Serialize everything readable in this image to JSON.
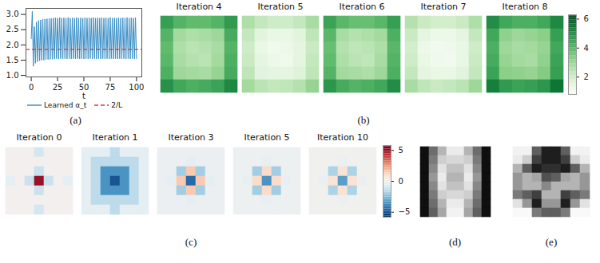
{
  "chart_data": [
    {
      "type": "line",
      "panel_label": "(a)",
      "xlabel": "t",
      "xlim": [
        -5,
        105
      ],
      "xticks": [
        0,
        25,
        50,
        75,
        100
      ],
      "ylim": [
        0.95,
        3.2
      ],
      "yticks": [
        {
          "value": 1,
          "label": "1.0"
        },
        1.5,
        {
          "value": 2,
          "label": "2.0"
        },
        2.5,
        {
          "value": 3,
          "label": "3.0"
        }
      ],
      "legend": "bottom",
      "x": [
        0,
        1,
        2,
        3,
        4,
        5,
        6,
        7,
        8,
        9,
        10,
        11,
        12,
        13,
        14,
        15,
        16,
        17,
        18,
        19,
        20,
        21,
        22,
        23,
        24,
        25,
        26,
        27,
        28,
        29,
        30,
        31,
        32,
        33,
        34,
        35,
        36,
        37,
        38,
        39,
        40,
        41,
        42,
        43,
        44,
        45,
        46,
        47,
        48,
        49,
        50,
        51,
        52,
        53,
        54,
        55,
        56,
        57,
        58,
        59,
        60,
        61,
        62,
        63,
        64,
        65,
        66,
        67,
        68,
        69,
        70,
        71,
        72,
        73,
        74,
        75,
        76,
        77,
        78,
        79,
        80,
        81,
        82,
        83,
        84,
        85,
        86,
        87,
        88,
        89,
        90,
        91,
        92,
        93,
        94,
        95,
        96,
        97,
        98,
        99,
        100
      ],
      "series": [
        {
          "name": "Learned α_t",
          "color": "#3a8fc7",
          "line_style": "solid",
          "values": [
            2.2,
            3.1,
            1.3,
            2.6,
            1.4,
            2.75,
            1.45,
            2.8,
            1.48,
            2.82,
            1.5,
            2.84,
            1.5,
            2.85,
            1.52,
            2.86,
            1.52,
            2.87,
            1.53,
            2.87,
            1.53,
            2.88,
            1.54,
            2.89,
            1.55,
            2.88,
            1.54,
            2.9,
            1.55,
            2.88,
            1.54,
            2.89,
            1.55,
            2.88,
            1.54,
            2.9,
            1.55,
            2.88,
            1.54,
            2.89,
            1.55,
            2.88,
            1.54,
            2.9,
            1.55,
            2.88,
            1.54,
            2.89,
            1.55,
            2.88,
            1.54,
            2.9,
            1.55,
            2.88,
            1.54,
            2.89,
            1.55,
            2.88,
            1.54,
            2.9,
            1.55,
            2.88,
            1.54,
            2.89,
            1.55,
            2.88,
            1.54,
            2.9,
            1.55,
            2.88,
            1.54,
            2.89,
            1.55,
            2.88,
            1.54,
            2.9,
            1.55,
            2.88,
            1.54,
            2.89,
            1.55,
            2.88,
            1.54,
            2.9,
            1.55,
            2.88,
            1.54,
            2.89,
            1.55,
            2.88,
            1.54,
            2.9,
            1.55,
            2.88,
            1.54,
            2.89,
            1.55,
            2.88,
            1.54,
            2.9,
            1.55
          ]
        }
      ],
      "reference_lines": [
        {
          "name": "2/L",
          "value": 1.85,
          "color": "#e8352e",
          "line_style": "dashed"
        }
      ]
    },
    {
      "type": "heatmap",
      "panel_label": "(b)",
      "color": "greens",
      "colorbar": {
        "range": [
          0.8,
          6.3
        ],
        "ticks": [
          2,
          4,
          6
        ]
      },
      "panels": [
        {
          "title": "Iteration 4",
          "cells": [
            [
              4.5,
              4.0,
              3.8,
              3.8,
              4.0,
              4.6
            ],
            [
              4.0,
              2.8,
              2.6,
              2.7,
              2.9,
              4.2
            ],
            [
              3.8,
              2.6,
              2.4,
              2.5,
              2.7,
              4.0
            ],
            [
              3.9,
              2.7,
              2.5,
              2.4,
              2.8,
              4.1
            ],
            [
              4.1,
              2.9,
              2.8,
              2.7,
              3.0,
              4.2
            ],
            [
              4.8,
              4.3,
              4.1,
              4.2,
              4.4,
              5.0
            ]
          ]
        },
        {
          "title": "Iteration 5",
          "cells": [
            [
              2.6,
              2.2,
              2.0,
              2.0,
              2.2,
              2.7
            ],
            [
              2.2,
              1.5,
              1.3,
              1.3,
              1.5,
              2.3
            ],
            [
              2.0,
              1.3,
              1.1,
              1.2,
              1.4,
              2.1
            ],
            [
              2.1,
              1.4,
              1.2,
              1.1,
              1.4,
              2.2
            ],
            [
              2.3,
              1.5,
              1.4,
              1.4,
              1.6,
              2.3
            ],
            [
              2.8,
              2.4,
              2.2,
              2.3,
              2.5,
              3.0
            ]
          ]
        },
        {
          "title": "Iteration 6",
          "cells": [
            [
              4.4,
              3.9,
              3.7,
              3.7,
              3.9,
              4.5
            ],
            [
              3.9,
              2.7,
              2.5,
              2.6,
              2.8,
              4.1
            ],
            [
              3.7,
              2.5,
              2.3,
              2.4,
              2.6,
              3.9
            ],
            [
              3.8,
              2.6,
              2.4,
              2.3,
              2.7,
              4.0
            ],
            [
              4.0,
              2.8,
              2.7,
              2.6,
              2.9,
              4.1
            ],
            [
              4.7,
              4.2,
              4.0,
              4.1,
              4.3,
              4.9
            ]
          ]
        },
        {
          "title": "Iteration 7",
          "cells": [
            [
              2.5,
              2.1,
              1.9,
              1.9,
              2.1,
              2.6
            ],
            [
              2.1,
              1.4,
              1.2,
              1.2,
              1.4,
              2.2
            ],
            [
              1.9,
              1.2,
              1.0,
              1.1,
              1.3,
              2.0
            ],
            [
              2.0,
              1.3,
              1.1,
              1.0,
              1.3,
              2.1
            ],
            [
              2.2,
              1.4,
              1.3,
              1.3,
              1.5,
              2.2
            ],
            [
              2.7,
              2.3,
              2.1,
              2.2,
              2.4,
              2.9
            ]
          ]
        },
        {
          "title": "Iteration 8",
          "cells": [
            [
              4.9,
              4.3,
              4.1,
              4.1,
              4.3,
              5.0
            ],
            [
              4.3,
              3.1,
              2.9,
              3.0,
              3.2,
              4.5
            ],
            [
              4.1,
              2.9,
              2.7,
              2.8,
              3.0,
              4.3
            ],
            [
              4.2,
              3.0,
              2.8,
              2.7,
              3.1,
              4.4
            ],
            [
              4.4,
              3.2,
              3.1,
              3.0,
              3.3,
              4.5
            ],
            [
              5.2,
              4.6,
              4.4,
              4.5,
              4.7,
              5.4
            ]
          ]
        }
      ]
    },
    {
      "type": "heatmap",
      "panel_label": "(c)",
      "color": "rdbu_r",
      "colorbar": {
        "range": [
          -5.8,
          5.8
        ],
        "ticks": [
          5,
          0,
          {
            "value": -5,
            "label": "−5"
          }
        ]
      },
      "panels": [
        {
          "title": "Iteration 0",
          "cells": [
            [
              0,
              0,
              0,
              -1,
              0,
              0,
              0
            ],
            [
              0,
              0,
              0,
              0,
              0,
              0,
              0
            ],
            [
              0,
              0,
              0,
              -1.2,
              0,
              0,
              0
            ],
            [
              -0.5,
              0,
              -1.2,
              5,
              -1.2,
              0,
              -0.5
            ],
            [
              0,
              0,
              0,
              -1.2,
              0,
              0,
              0
            ],
            [
              0,
              0,
              0,
              0,
              0,
              0,
              0
            ],
            [
              0,
              0,
              0,
              -1,
              0,
              0,
              0
            ]
          ]
        },
        {
          "title": "Iteration 1",
          "cells": [
            [
              -0.5,
              -0.5,
              -0.5,
              -1.5,
              -0.5,
              -0.5,
              -0.5
            ],
            [
              -0.5,
              -1.5,
              -1.5,
              -1.5,
              -1.5,
              -1.5,
              -0.5
            ],
            [
              -0.5,
              -1.5,
              -3.5,
              -3.5,
              -3.5,
              -1.5,
              -0.5
            ],
            [
              -0.5,
              -1.5,
              -3.5,
              -5,
              -3.5,
              -1.5,
              -0.5
            ],
            [
              -0.5,
              -1.5,
              -3.5,
              -3.5,
              -3.5,
              -1.5,
              -0.5
            ],
            [
              -0.5,
              -1.5,
              -1.5,
              -1.5,
              -1.5,
              -1.5,
              -0.5
            ],
            [
              -0.5,
              -0.5,
              -0.5,
              -1.5,
              -0.5,
              -0.5,
              -0.5
            ]
          ]
        },
        {
          "title": "Iteration 3",
          "cells": [
            [
              -0.3,
              -0.3,
              -0.3,
              -0.3,
              -0.3,
              -0.3,
              -0.3
            ],
            [
              -0.3,
              -0.3,
              -0.3,
              -0.5,
              -0.3,
              -0.3,
              -0.3
            ],
            [
              -0.3,
              -0.3,
              -2,
              1.5,
              -2,
              -0.3,
              -0.3
            ],
            [
              -0.3,
              -0.5,
              1.5,
              -4.5,
              1.5,
              -0.5,
              -0.3
            ],
            [
              -0.3,
              -0.3,
              -2,
              1.5,
              -2,
              -0.3,
              -0.3
            ],
            [
              -0.3,
              -0.3,
              -0.3,
              -0.5,
              -0.3,
              -0.3,
              -0.3
            ],
            [
              -0.3,
              -0.3,
              -0.3,
              -0.3,
              -0.3,
              -0.3,
              -0.3
            ]
          ]
        },
        {
          "title": "Iteration 5",
          "cells": [
            [
              -0.2,
              -0.2,
              -0.2,
              -0.2,
              -0.2,
              -0.2,
              -0.2
            ],
            [
              -0.2,
              -0.2,
              -0.2,
              -0.4,
              -0.2,
              -0.2,
              -0.2
            ],
            [
              -0.2,
              -0.2,
              -2,
              1,
              -2,
              -0.2,
              -0.2
            ],
            [
              -0.2,
              -0.4,
              1,
              -3.5,
              1,
              -0.4,
              -0.2
            ],
            [
              -0.2,
              -0.2,
              -2,
              1,
              -2,
              -0.2,
              -0.2
            ],
            [
              -0.2,
              -0.2,
              -0.2,
              -0.4,
              -0.2,
              -0.2,
              -0.2
            ],
            [
              -0.2,
              -0.2,
              -0.2,
              -0.2,
              -0.2,
              -0.2,
              -0.2
            ]
          ]
        },
        {
          "title": "Iteration 10",
          "cells": [
            [
              -0.1,
              -0.1,
              -0.1,
              -0.1,
              -0.1,
              -0.1,
              -0.1
            ],
            [
              -0.1,
              -0.1,
              -0.1,
              -0.3,
              -0.1,
              -0.1,
              -0.1
            ],
            [
              -0.1,
              -0.1,
              -1.8,
              0.8,
              -1.8,
              -0.1,
              -0.1
            ],
            [
              -0.1,
              -0.3,
              0.8,
              -3.2,
              0.8,
              -0.3,
              -0.1
            ],
            [
              -0.1,
              -0.1,
              -1.8,
              0.8,
              -1.8,
              -0.1,
              -0.1
            ],
            [
              -0.1,
              -0.1,
              -0.1,
              -0.3,
              -0.1,
              -0.1,
              -0.1
            ],
            [
              -0.1,
              -0.1,
              -0.1,
              -0.1,
              -0.1,
              -0.1,
              -0.1
            ]
          ]
        }
      ]
    },
    {
      "type": "image",
      "panel_label": "(d)",
      "color": "greys_r",
      "value_range": [
        0,
        1
      ],
      "cells": [
        [
          0.05,
          0.35,
          0.6,
          0.85,
          0.85,
          0.6,
          0.35,
          0.05
        ],
        [
          0.05,
          0.4,
          0.7,
          0.75,
          0.75,
          0.7,
          0.4,
          0.05
        ],
        [
          0.05,
          0.45,
          0.8,
          0.65,
          0.65,
          0.8,
          0.45,
          0.05
        ],
        [
          0.05,
          0.5,
          0.85,
          0.6,
          0.6,
          0.85,
          0.5,
          0.05
        ],
        [
          0.05,
          0.45,
          0.8,
          0.65,
          0.65,
          0.8,
          0.45,
          0.05
        ],
        [
          0.05,
          0.4,
          0.7,
          0.75,
          0.75,
          0.7,
          0.4,
          0.05
        ],
        [
          0.05,
          0.35,
          0.6,
          0.85,
          0.85,
          0.6,
          0.35,
          0.05
        ],
        [
          0.05,
          0.3,
          0.55,
          0.9,
          0.9,
          0.55,
          0.3,
          0.05
        ]
      ]
    },
    {
      "type": "image",
      "panel_label": "(e)",
      "color": "greys_r",
      "value_range": [
        0,
        1
      ],
      "cells": [
        [
          0.9,
          0.9,
          0.3,
          0.1,
          0.1,
          0.3,
          0.9,
          0.9
        ],
        [
          0.85,
          0.7,
          0.2,
          0.1,
          0.1,
          0.2,
          0.7,
          0.85
        ],
        [
          0.6,
          0.3,
          0.1,
          0.15,
          0.15,
          0.1,
          0.3,
          0.6
        ],
        [
          0.5,
          0.6,
          0.55,
          0.25,
          0.3,
          0.55,
          0.6,
          0.5
        ],
        [
          0.5,
          0.6,
          0.6,
          0.45,
          0.6,
          0.6,
          0.6,
          0.5
        ],
        [
          0.4,
          0.3,
          0.2,
          0.6,
          0.6,
          0.2,
          0.3,
          0.4
        ],
        [
          0.8,
          0.5,
          0.1,
          0.5,
          0.5,
          0.1,
          0.5,
          0.8
        ],
        [
          0.95,
          0.95,
          0.4,
          0.3,
          0.3,
          0.4,
          0.95,
          0.95
        ]
      ]
    }
  ]
}
